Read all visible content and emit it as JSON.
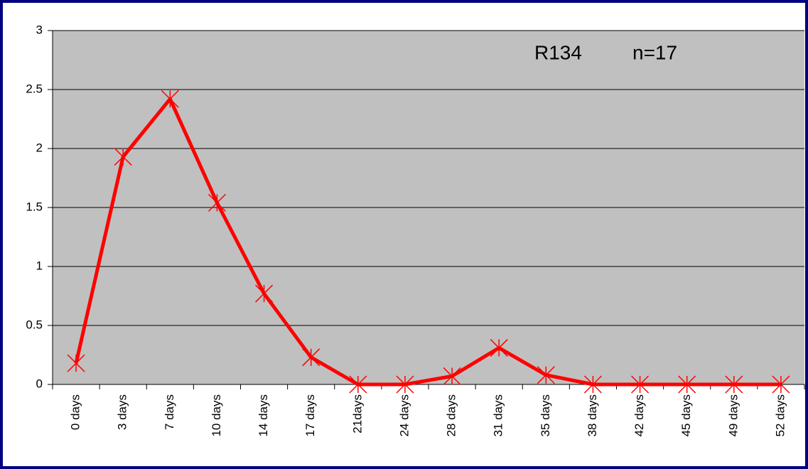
{
  "chart_data": {
    "type": "line",
    "annotations": [
      "R134",
      "n=17"
    ],
    "categories": [
      "0 days",
      "3 days",
      "7 days",
      "10 days",
      "14 days",
      "17 days",
      "21days",
      "24 days",
      "28 days",
      "31 days",
      "35 days",
      "38 days",
      "42 days",
      "45 days",
      "49 days",
      "52 days"
    ],
    "series": [
      {
        "color": "#ff0000",
        "values": [
          0.18,
          1.93,
          2.42,
          1.54,
          0.77,
          0.23,
          0,
          0,
          0.07,
          0.31,
          0.08,
          0,
          0,
          0,
          0,
          0
        ]
      }
    ],
    "ylim": [
      0,
      3
    ],
    "yticks": [
      0,
      0.5,
      1,
      1.5,
      2,
      2.5,
      3
    ],
    "grid": true
  }
}
